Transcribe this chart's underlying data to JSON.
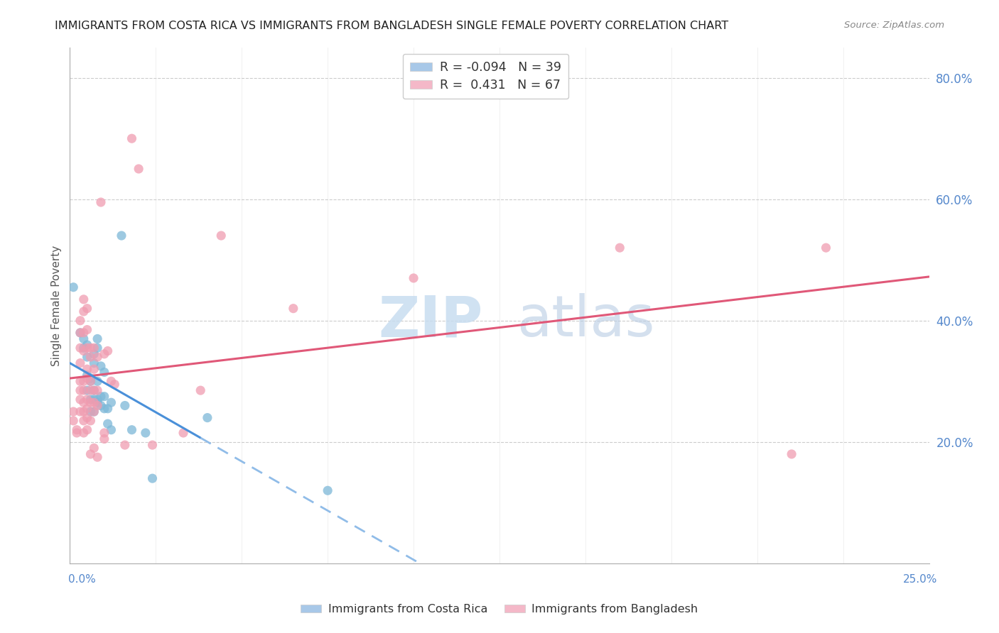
{
  "title": "IMMIGRANTS FROM COSTA RICA VS IMMIGRANTS FROM BANGLADESH SINGLE FEMALE POVERTY CORRELATION CHART",
  "source": "Source: ZipAtlas.com",
  "ylabel": "Single Female Poverty",
  "costa_rica_color": "#7db8d8",
  "bangladesh_color": "#f09cb0",
  "cr_legend_color": "#a8c8e8",
  "bd_legend_color": "#f4b8c8",
  "cr_r": -0.094,
  "cr_n": 39,
  "bd_r": 0.431,
  "bd_n": 67,
  "xlim": [
    0.0,
    0.25
  ],
  "ylim": [
    0.0,
    0.85
  ],
  "xgrid_vals": [
    0.0,
    0.025,
    0.05,
    0.075,
    0.1,
    0.125,
    0.15,
    0.175,
    0.2,
    0.225,
    0.25
  ],
  "ygrid_vals": [
    0.2,
    0.4,
    0.6,
    0.8
  ],
  "cr_line_color_solid": "#4a90d9",
  "cr_line_color_dash": "#90bce8",
  "bd_line_color": "#e05878",
  "costa_rica_points": [
    [
      0.001,
      0.455
    ],
    [
      0.003,
      0.38
    ],
    [
      0.004,
      0.355
    ],
    [
      0.004,
      0.37
    ],
    [
      0.005,
      0.36
    ],
    [
      0.005,
      0.34
    ],
    [
      0.005,
      0.31
    ],
    [
      0.005,
      0.285
    ],
    [
      0.006,
      0.3
    ],
    [
      0.006,
      0.305
    ],
    [
      0.006,
      0.27
    ],
    [
      0.006,
      0.25
    ],
    [
      0.007,
      0.345
    ],
    [
      0.007,
      0.33
    ],
    [
      0.007,
      0.285
    ],
    [
      0.007,
      0.27
    ],
    [
      0.007,
      0.25
    ],
    [
      0.008,
      0.37
    ],
    [
      0.008,
      0.355
    ],
    [
      0.008,
      0.3
    ],
    [
      0.008,
      0.27
    ],
    [
      0.008,
      0.265
    ],
    [
      0.009,
      0.325
    ],
    [
      0.009,
      0.275
    ],
    [
      0.009,
      0.26
    ],
    [
      0.01,
      0.315
    ],
    [
      0.01,
      0.275
    ],
    [
      0.01,
      0.255
    ],
    [
      0.011,
      0.255
    ],
    [
      0.011,
      0.23
    ],
    [
      0.012,
      0.265
    ],
    [
      0.012,
      0.22
    ],
    [
      0.015,
      0.54
    ],
    [
      0.016,
      0.26
    ],
    [
      0.018,
      0.22
    ],
    [
      0.022,
      0.215
    ],
    [
      0.024,
      0.14
    ],
    [
      0.04,
      0.24
    ],
    [
      0.075,
      0.12
    ]
  ],
  "bangladesh_points": [
    [
      0.001,
      0.25
    ],
    [
      0.001,
      0.235
    ],
    [
      0.002,
      0.22
    ],
    [
      0.002,
      0.215
    ],
    [
      0.003,
      0.4
    ],
    [
      0.003,
      0.38
    ],
    [
      0.003,
      0.355
    ],
    [
      0.003,
      0.33
    ],
    [
      0.003,
      0.3
    ],
    [
      0.003,
      0.285
    ],
    [
      0.003,
      0.27
    ],
    [
      0.003,
      0.25
    ],
    [
      0.004,
      0.435
    ],
    [
      0.004,
      0.415
    ],
    [
      0.004,
      0.38
    ],
    [
      0.004,
      0.35
    ],
    [
      0.004,
      0.3
    ],
    [
      0.004,
      0.285
    ],
    [
      0.004,
      0.265
    ],
    [
      0.004,
      0.25
    ],
    [
      0.004,
      0.235
    ],
    [
      0.004,
      0.215
    ],
    [
      0.005,
      0.42
    ],
    [
      0.005,
      0.385
    ],
    [
      0.005,
      0.355
    ],
    [
      0.005,
      0.32
    ],
    [
      0.005,
      0.305
    ],
    [
      0.005,
      0.27
    ],
    [
      0.005,
      0.255
    ],
    [
      0.005,
      0.24
    ],
    [
      0.005,
      0.22
    ],
    [
      0.006,
      0.355
    ],
    [
      0.006,
      0.34
    ],
    [
      0.006,
      0.3
    ],
    [
      0.006,
      0.285
    ],
    [
      0.006,
      0.265
    ],
    [
      0.006,
      0.235
    ],
    [
      0.006,
      0.18
    ],
    [
      0.007,
      0.355
    ],
    [
      0.007,
      0.32
    ],
    [
      0.007,
      0.285
    ],
    [
      0.007,
      0.265
    ],
    [
      0.007,
      0.25
    ],
    [
      0.007,
      0.19
    ],
    [
      0.008,
      0.34
    ],
    [
      0.008,
      0.285
    ],
    [
      0.008,
      0.26
    ],
    [
      0.008,
      0.175
    ],
    [
      0.009,
      0.595
    ],
    [
      0.01,
      0.345
    ],
    [
      0.01,
      0.215
    ],
    [
      0.01,
      0.205
    ],
    [
      0.011,
      0.35
    ],
    [
      0.012,
      0.3
    ],
    [
      0.013,
      0.295
    ],
    [
      0.016,
      0.195
    ],
    [
      0.018,
      0.7
    ],
    [
      0.02,
      0.65
    ],
    [
      0.024,
      0.195
    ],
    [
      0.033,
      0.215
    ],
    [
      0.038,
      0.285
    ],
    [
      0.044,
      0.54
    ],
    [
      0.065,
      0.42
    ],
    [
      0.1,
      0.47
    ],
    [
      0.16,
      0.52
    ],
    [
      0.21,
      0.18
    ],
    [
      0.22,
      0.52
    ]
  ]
}
